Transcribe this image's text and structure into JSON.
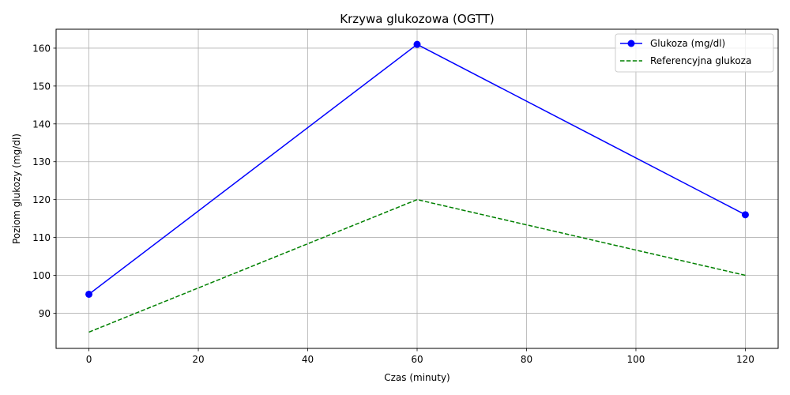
{
  "chart_data": {
    "type": "line",
    "title": "Krzywa glukozowa (OGTT)",
    "xlabel": "Czas (minuty)",
    "ylabel": "Poziom glukozy (mg/dl)",
    "xlim": [
      -6,
      126
    ],
    "ylim": [
      80.7,
      165
    ],
    "xticks": [
      0,
      20,
      40,
      60,
      80,
      100,
      120
    ],
    "xtick_labels": [
      "0",
      "20",
      "40",
      "60",
      "80",
      "100",
      "120"
    ],
    "yticks": [
      90,
      100,
      110,
      120,
      130,
      140,
      150,
      160
    ],
    "ytick_labels": [
      "90",
      "100",
      "110",
      "120",
      "130",
      "140",
      "150",
      "160"
    ],
    "grid": true,
    "legend_position": "top-right",
    "series": [
      {
        "name": "Glukoza (mg/dl)",
        "x": [
          0,
          60,
          120
        ],
        "y": [
          95,
          161,
          116
        ],
        "color": "#0000ff",
        "line_style": "solid",
        "marker": "circle"
      },
      {
        "name": "Referencyjna glukoza",
        "x": [
          0,
          60,
          120
        ],
        "y": [
          85,
          120,
          100
        ],
        "color": "#008000",
        "line_style": "dashed",
        "marker": "none"
      }
    ]
  }
}
